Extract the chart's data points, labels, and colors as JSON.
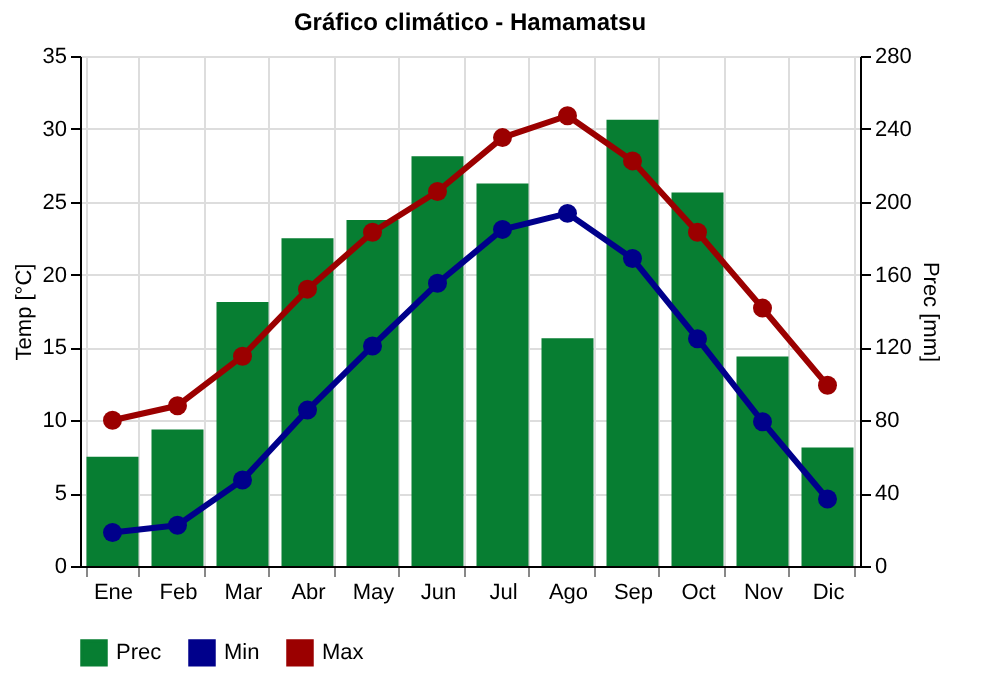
{
  "chart_data": {
    "type": "bar",
    "title": "Gráfico climático - Hamamatsu",
    "xlabel": null,
    "ylabel": "Temp [°C]",
    "y2label": "Prec [mm]",
    "categories": [
      "Ene",
      "Feb",
      "Mar",
      "Abr",
      "May",
      "Jun",
      "Jul",
      "Ago",
      "Sep",
      "Oct",
      "Nov",
      "Dic"
    ],
    "series": [
      {
        "name": "Prec",
        "axis": "y2",
        "color": "#077e32",
        "values": [
          60,
          75,
          145,
          180,
          190,
          225,
          210,
          125,
          245,
          205,
          115,
          65
        ]
      },
      {
        "name": "Min",
        "type": "line",
        "color": "#00008b",
        "values": [
          2.3,
          2.8,
          5.9,
          10.7,
          15.1,
          19.4,
          23.1,
          24.2,
          21.1,
          15.6,
          9.9,
          4.6
        ]
      },
      {
        "name": "Max",
        "type": "line",
        "color": "#9b0000",
        "values": [
          10.0,
          11.0,
          14.4,
          19.0,
          22.9,
          25.7,
          29.4,
          30.9,
          27.8,
          22.9,
          17.7,
          12.4
        ]
      }
    ],
    "ylim": [
      0,
      35
    ],
    "yticks": [
      0,
      5,
      10,
      15,
      20,
      25,
      30,
      35
    ],
    "y2lim": [
      0,
      280
    ],
    "y2ticks": [
      0,
      40,
      80,
      120,
      160,
      200,
      240,
      280
    ],
    "grid": true,
    "legend": "bottom",
    "marker": "circle"
  }
}
